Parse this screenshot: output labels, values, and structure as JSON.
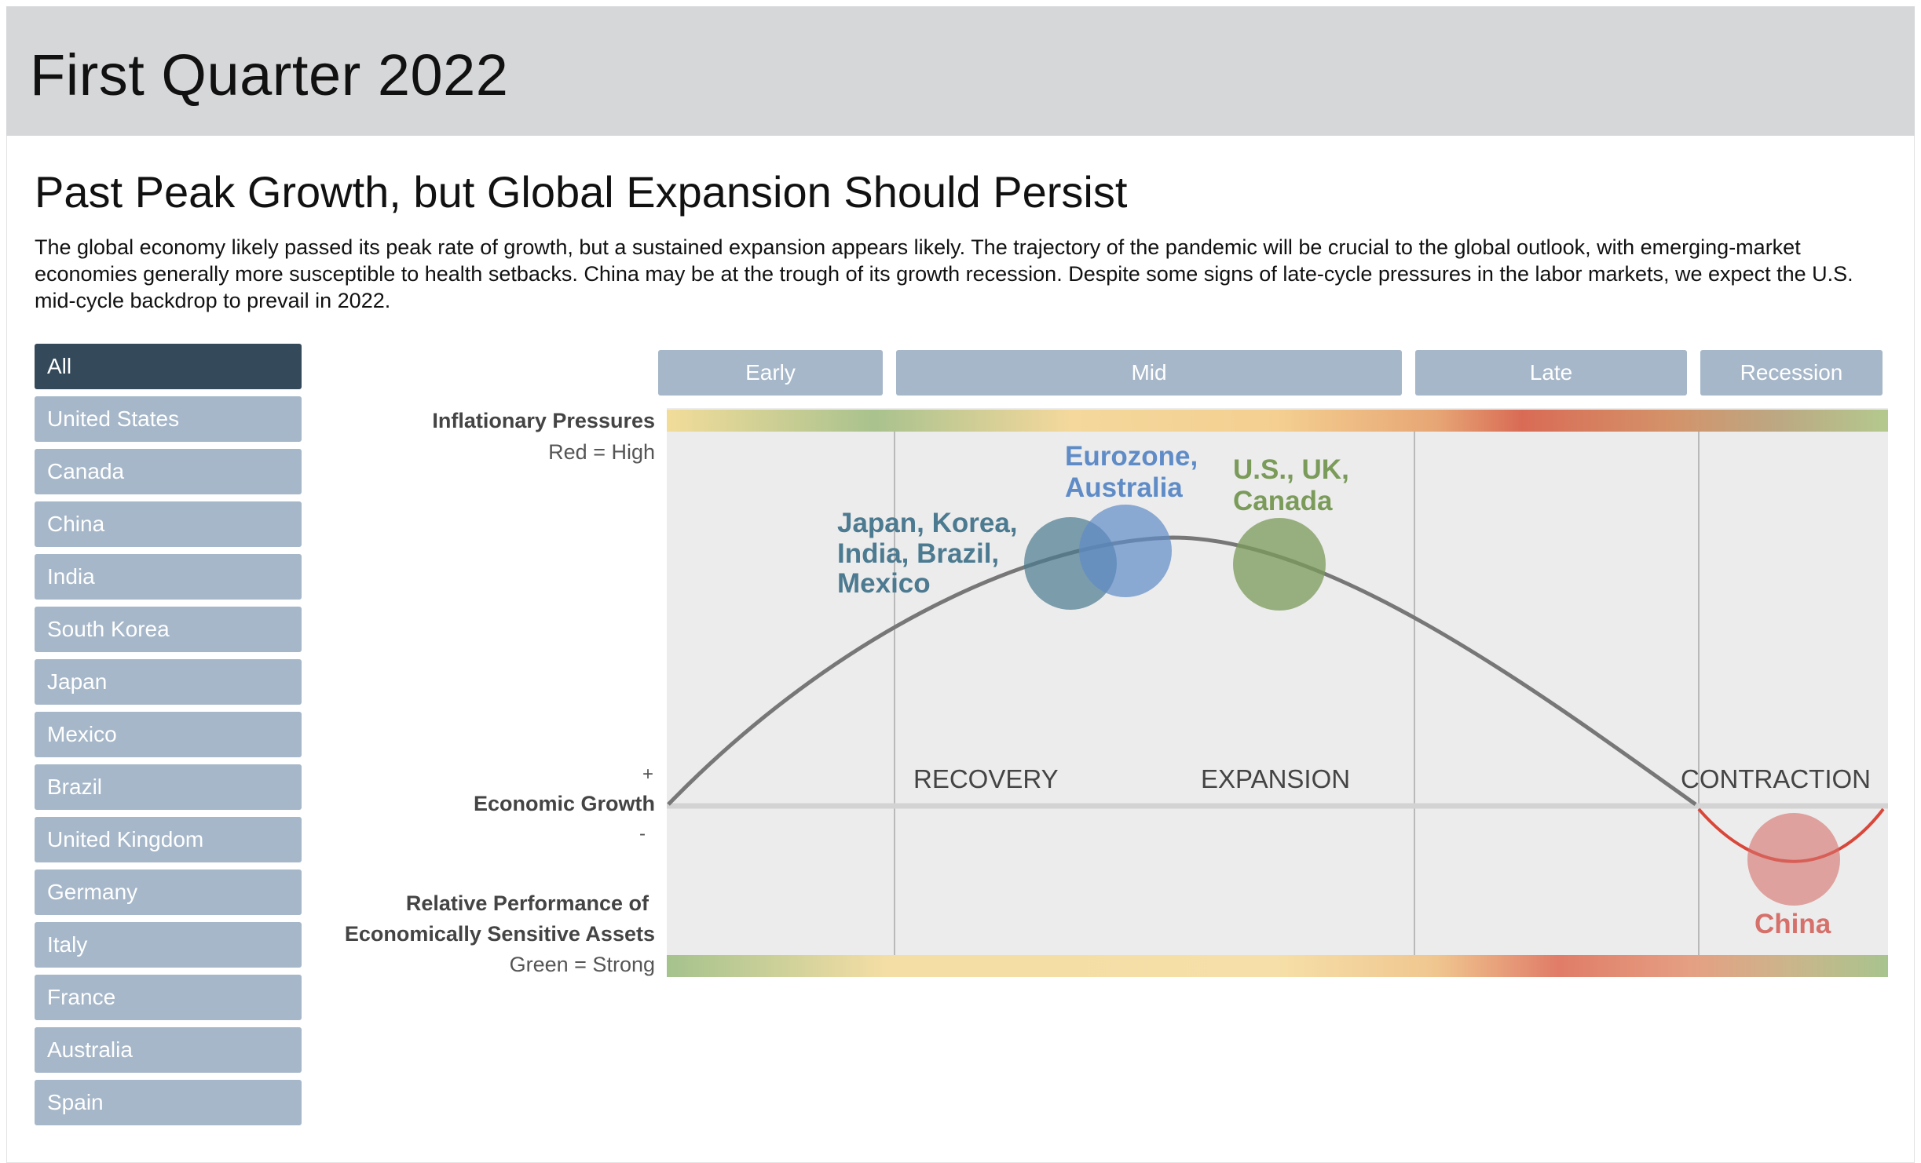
{
  "header": {
    "title": "First Quarter 2022"
  },
  "content": {
    "subtitle": "Past Peak Growth, but Global Expansion Should Persist",
    "intro": "The global economy likely passed its peak rate of growth, but a sustained expansion appears likely. The trajectory of the pandemic will be crucial to the global outlook, with emerging-market economies generally more susceptible to health setbacks. China may be at the trough of its growth recession. Despite some signs of late-cycle pressures in the labor markets, we expect the U.S. mid-cycle backdrop to prevail in 2022."
  },
  "sidebar": {
    "items": [
      {
        "label": "All",
        "active": true
      },
      {
        "label": "United States"
      },
      {
        "label": "Canada"
      },
      {
        "label": "China"
      },
      {
        "label": "India"
      },
      {
        "label": "South Korea"
      },
      {
        "label": "Japan"
      },
      {
        "label": "Mexico"
      },
      {
        "label": "Brazil"
      },
      {
        "label": "United Kingdom"
      },
      {
        "label": "Germany"
      },
      {
        "label": "Italy"
      },
      {
        "label": "France"
      },
      {
        "label": "Australia"
      },
      {
        "label": "Spain"
      }
    ]
  },
  "chart_data": {
    "type": "diagram",
    "phase_tabs": [
      "Early",
      "Mid",
      "Late",
      "Recession"
    ],
    "labels": {
      "inflation_title": "Inflationary Pressures",
      "inflation_key": "Red = High",
      "growth_plus": "+",
      "growth_title": "Economic Growth",
      "growth_minus": "-",
      "perf_title_1": "Relative Performance of",
      "perf_title_2": "Economically Sensitive Assets",
      "perf_key": "Green = Strong"
    },
    "stages": [
      "RECOVERY",
      "EXPANSION",
      "CONTRACTION"
    ],
    "groups": [
      {
        "name": "japan-korea-india-brazil-mexico",
        "lines": [
          "Japan, Korea,",
          "India, Brazil,",
          "Mexico"
        ],
        "color": "#4c7a90"
      },
      {
        "name": "eurozone-australia",
        "lines": [
          "Eurozone,",
          "Australia"
        ],
        "color": "#5f8cc7"
      },
      {
        "name": "us-uk-canada",
        "lines": [
          "U.S., UK,",
          "Canada"
        ],
        "color": "#7b9b5a"
      },
      {
        "name": "china",
        "lines": [
          "China"
        ],
        "color": "#d6706b"
      }
    ],
    "colors": {
      "curve": "#777777",
      "recession_curve": "#d9473a",
      "tab_bg": "#a6b7c9",
      "panel_bg": "#ececec"
    }
  }
}
